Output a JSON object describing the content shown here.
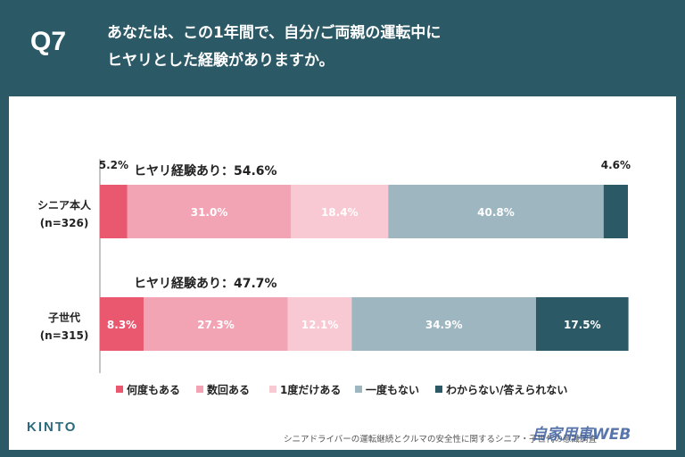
{
  "header": {
    "q_label": "Q7",
    "question_line1": "あなたは、この1年間で、自分/ご両親の運転中に",
    "question_line2": "ヒヤリとした経験がありますか。"
  },
  "chart_data": {
    "type": "bar",
    "orientation": "horizontal",
    "stacked": true,
    "categories": [
      {
        "name": "シニア本人",
        "sample": "(n=326)",
        "summary": "ヒヤリ経験あり：54.6%"
      },
      {
        "name": "子世代",
        "sample": "(n=315)",
        "summary": "ヒヤリ経験あり：47.7%"
      }
    ],
    "series": [
      {
        "name": "何度もある",
        "color": "#e9586f",
        "values": [
          5.2,
          8.3
        ]
      },
      {
        "name": "数回ある",
        "color": "#f2a3b4",
        "values": [
          31.0,
          27.3
        ]
      },
      {
        "name": "1度だけある",
        "color": "#f8c8d3",
        "values": [
          18.4,
          12.1
        ]
      },
      {
        "name": "一度もない",
        "color": "#9db6bf",
        "values": [
          40.8,
          34.9
        ]
      },
      {
        "name": "わからない/答えられない",
        "color": "#2c5966",
        "values": [
          4.6,
          17.5
        ]
      }
    ],
    "labels": [
      [
        "5.2%",
        "31.0%",
        "18.4%",
        "40.8%",
        "4.6%"
      ],
      [
        "8.3%",
        "27.3%",
        "12.1%",
        "34.9%",
        "17.5%"
      ]
    ],
    "legend_position": "bottom"
  },
  "footer": {
    "logo_main": "KINTO",
    "footnote": "シニアドライバーの運転継続とクルマの安全性に関するシニア・子世代の意識調査",
    "watermark": "自家用車WEB"
  }
}
